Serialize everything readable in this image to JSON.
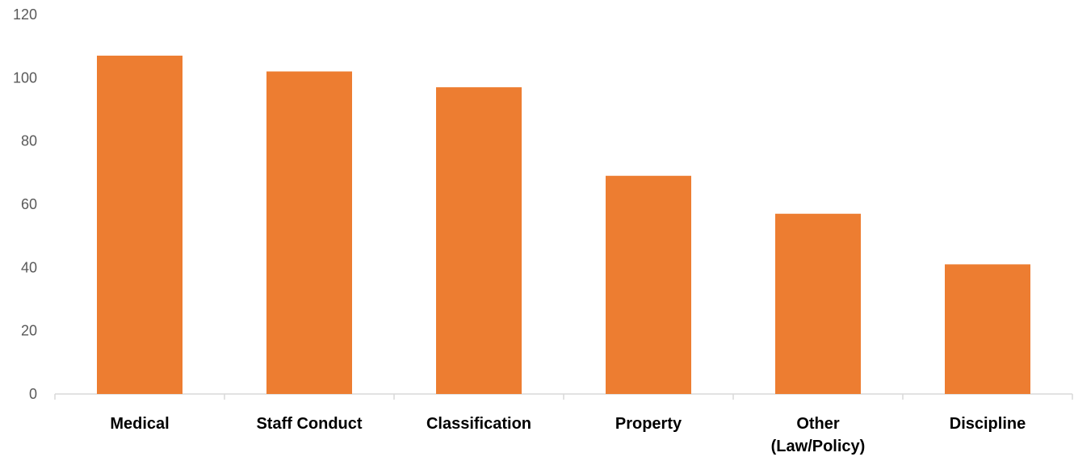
{
  "chart_data": {
    "type": "bar",
    "title": "",
    "xlabel": "",
    "ylabel": "",
    "categories": [
      "Medical",
      "Staff Conduct",
      "Classification",
      "Property",
      "Other (Law/Policy)",
      "Discipline"
    ],
    "category_lines": [
      [
        "Medical"
      ],
      [
        "Staff Conduct"
      ],
      [
        "Classification"
      ],
      [
        "Property"
      ],
      [
        "Other",
        "(Law/Policy)"
      ],
      [
        "Discipline"
      ]
    ],
    "values": [
      107,
      102,
      97,
      69,
      57,
      41
    ],
    "ylim": [
      0,
      120
    ],
    "yticks": [
      0,
      20,
      40,
      60,
      80,
      100,
      120
    ],
    "grid": false,
    "legend": "none",
    "bar_color": "#ED7D31",
    "axis_color": "#D9D9D9",
    "tick_label_color": "#595959",
    "category_label_color": "#000000"
  }
}
